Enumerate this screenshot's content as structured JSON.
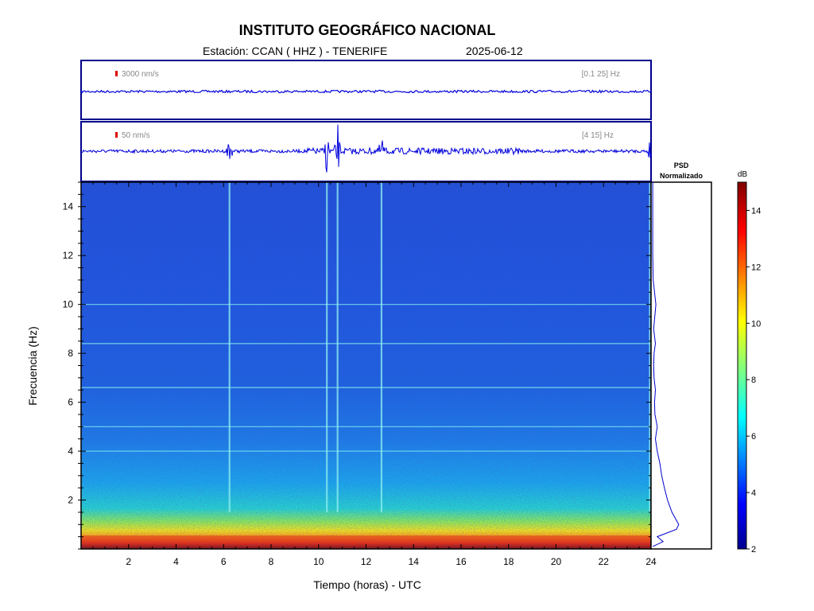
{
  "header": {
    "title": "INSTITUTO GEOGRÁFICO NACIONAL",
    "station": "Estación:  CCAN ( HHZ ) - TENERIFE",
    "date": "2025-06-12"
  },
  "traces": [
    {
      "scale_label": "3000 nm/s",
      "band_label": "[0.1 25] Hz"
    },
    {
      "scale_label": "50 nm/s",
      "band_label": "[4 15] Hz"
    }
  ],
  "psd": {
    "title_line1": "PSD",
    "title_line2": "Normalizado"
  },
  "colorbar": {
    "unit": "dB",
    "ticks": [
      2,
      4,
      6,
      8,
      10,
      12,
      14
    ],
    "range": [
      2,
      15
    ]
  },
  "colors": {
    "frame": "#00008b",
    "trace": "#0000dd",
    "scale_marker": "#dd0000",
    "band_text": "#888888"
  },
  "chart_data": {
    "type": "heatmap",
    "xlabel": "Tiempo (horas) - UTC",
    "ylabel": "Frecuencia  (Hz)",
    "xlim": [
      0,
      24
    ],
    "ylim": [
      0,
      15
    ],
    "xticks": [
      2,
      4,
      6,
      8,
      10,
      12,
      14,
      16,
      18,
      20,
      22,
      24
    ],
    "yticks": [
      2,
      4,
      6,
      8,
      10,
      12,
      14
    ],
    "events_hours": [
      6.25,
      10.35,
      10.8,
      12.65,
      23.95
    ],
    "horizontal_lines_hz": [
      10.0,
      8.4,
      6.6,
      5.0,
      4.0
    ],
    "psd_profile": {
      "frequency_hz": [
        0.1,
        0.3,
        0.5,
        0.8,
        1.0,
        1.5,
        2.0,
        2.5,
        3.0,
        3.5,
        4.0,
        4.5,
        5.0,
        5.5,
        6.0,
        6.5,
        7.0,
        7.5,
        8.0,
        8.4,
        9.0,
        10.0,
        11.0,
        12.0,
        13.0,
        14.0,
        15.0
      ],
      "normalized": [
        0.02,
        0.25,
        0.12,
        0.55,
        0.6,
        0.45,
        0.35,
        0.28,
        0.22,
        0.18,
        0.12,
        0.08,
        0.12,
        0.07,
        0.06,
        0.08,
        0.05,
        0.04,
        0.05,
        0.08,
        0.04,
        0.09,
        0.03,
        0.02,
        0.02,
        0.02,
        0.02
      ]
    }
  }
}
